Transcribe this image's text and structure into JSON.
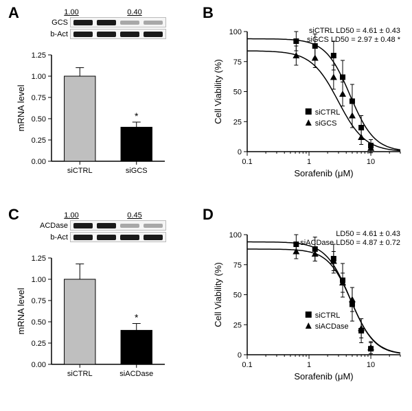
{
  "labels": {
    "A": "A",
    "B": "B",
    "C": "C",
    "D": "D"
  },
  "panelA": {
    "blot": {
      "nums": [
        "1.00",
        "0.40"
      ],
      "rows": [
        {
          "label": "GCS",
          "bands": [
            1,
            1,
            0.3,
            0.3
          ]
        },
        {
          "label": "b-Act",
          "bands": [
            1,
            1,
            1,
            1
          ]
        }
      ]
    },
    "bar": {
      "type": "bar",
      "ylabel": "mRNA level",
      "categories": [
        "siCTRL",
        "siGCS"
      ],
      "values": [
        1.0,
        0.4
      ],
      "errors": [
        0.1,
        0.06
      ],
      "sig": [
        false,
        true
      ],
      "bar_colors": [
        "#bfbfbf",
        "#000000"
      ],
      "ylim": [
        0,
        1.25
      ],
      "ytick_step": 0.25,
      "bar_width": 0.55,
      "axis_color": "#000000",
      "background": "#ffffff"
    }
  },
  "panelB": {
    "type": "dose-response",
    "xlabel": "Sorafenib (μM)",
    "ylabel": "Cell Viability (%)",
    "ylim": [
      0,
      100
    ],
    "ytick_step": 25,
    "xlog": true,
    "xlim": [
      0.1,
      30
    ],
    "xticks": [
      0.1,
      1,
      10
    ],
    "ld50_text": [
      "siCTRL LD50 = 4.61 ± 0.43",
      "siGCS  LD50 = 2.97 ± 0.48 *"
    ],
    "series": [
      {
        "name": "siCTRL",
        "marker": "square",
        "color": "#000000",
        "x": [
          0.62,
          1.25,
          2.5,
          3.5,
          5,
          7,
          10
        ],
        "y": [
          92,
          88,
          80,
          62,
          42,
          20,
          5
        ],
        "err": [
          8,
          10,
          12,
          14,
          14,
          10,
          5
        ],
        "curve": {
          "top": 94,
          "bottom": 0,
          "ec50": 4.61,
          "hill": -2.2
        }
      },
      {
        "name": "siGCS",
        "marker": "triangle",
        "color": "#000000",
        "x": [
          0.62,
          1.25,
          2.5,
          3.5,
          5,
          7,
          10
        ],
        "y": [
          80,
          78,
          62,
          48,
          30,
          12,
          3
        ],
        "err": [
          8,
          8,
          10,
          10,
          10,
          6,
          4
        ],
        "curve": {
          "top": 84,
          "bottom": 0,
          "ec50": 2.97,
          "hill": -2.0
        }
      }
    ]
  },
  "panelC": {
    "blot": {
      "nums": [
        "1.00",
        "0.45"
      ],
      "rows": [
        {
          "label": "ACDase",
          "bands": [
            1,
            1,
            0.3,
            0.3
          ]
        },
        {
          "label": "b-Act",
          "bands": [
            1,
            1,
            1,
            1
          ]
        }
      ]
    },
    "bar": {
      "type": "bar",
      "ylabel": "mRNA level",
      "categories": [
        "siCTRL",
        "siACDase"
      ],
      "values": [
        1.0,
        0.4
      ],
      "errors": [
        0.18,
        0.08
      ],
      "sig": [
        false,
        true
      ],
      "bar_colors": [
        "#bfbfbf",
        "#000000"
      ],
      "ylim": [
        0,
        1.25
      ],
      "ytick_step": 0.25,
      "bar_width": 0.55,
      "axis_color": "#000000",
      "background": "#ffffff"
    }
  },
  "panelD": {
    "type": "dose-response",
    "xlabel": "Sorafenib (μM)",
    "ylabel": "Cell Viability (%)",
    "ylim": [
      0,
      100
    ],
    "ytick_step": 25,
    "xlog": true,
    "xlim": [
      0.1,
      30
    ],
    "xticks": [
      0.1,
      1,
      10
    ],
    "ld50_text": [
      "LD50 = 4.61 ± 0.43",
      "siACDase LD50 = 4.87 ± 0.72"
    ],
    "series": [
      {
        "name": "siCTRL",
        "marker": "square",
        "color": "#000000",
        "x": [
          0.62,
          1.25,
          2.5,
          3.5,
          5,
          7,
          10
        ],
        "y": [
          92,
          88,
          80,
          62,
          42,
          20,
          5
        ],
        "err": [
          8,
          10,
          12,
          14,
          14,
          10,
          5
        ],
        "curve": {
          "top": 94,
          "bottom": 0,
          "ec50": 4.61,
          "hill": -2.2
        }
      },
      {
        "name": "siACDase",
        "marker": "triangle",
        "color": "#000000",
        "x": [
          0.62,
          1.25,
          2.5,
          3.5,
          5,
          7,
          10
        ],
        "y": [
          86,
          84,
          78,
          60,
          46,
          22,
          6
        ],
        "err": [
          6,
          6,
          8,
          8,
          10,
          8,
          5
        ],
        "curve": {
          "top": 88,
          "bottom": 0,
          "ec50": 4.87,
          "hill": -2.3
        }
      }
    ]
  }
}
